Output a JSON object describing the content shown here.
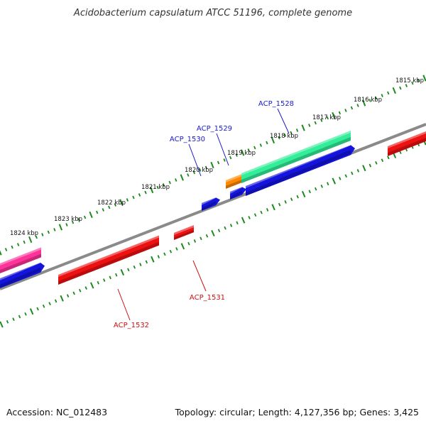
{
  "title": "Acidobacterium capsulatum ATCC 51196, complete genome",
  "footer": {
    "accession": "Accession: NC_012483",
    "summary": "Topology: circular; Length: 4,127,356 bp; Genes: 3,425"
  },
  "colors": {
    "backbone": "#8a8a8a",
    "ticks": "#1a8a1a",
    "label_forward": "#1a1acc",
    "label_reverse": "#cc1111"
  },
  "ticks": [
    {
      "label": "1815 kbp"
    },
    {
      "label": "1816 kbp"
    },
    {
      "label": "1817 kbp"
    },
    {
      "label": "1818 kbp"
    },
    {
      "label": "1819 kbp"
    },
    {
      "label": "1820 kbp"
    },
    {
      "label": "1821 kbp"
    },
    {
      "label": "1822 kbp"
    },
    {
      "label": "1823 kbp"
    },
    {
      "label": "1824 kbp"
    }
  ],
  "gene_labels": [
    {
      "name": "ACP_1528",
      "strand": "forward"
    },
    {
      "name": "ACP_1529",
      "strand": "forward"
    },
    {
      "name": "ACP_1530",
      "strand": "forward"
    },
    {
      "name": "ACP_1531",
      "strand": "reverse"
    },
    {
      "name": "ACP_1532",
      "strand": "reverse"
    }
  ],
  "features": [
    {
      "name": "pink-feature-left",
      "color": "#ff3399"
    },
    {
      "name": "blue-feature-left",
      "color": "#1414dd"
    },
    {
      "name": "blue-feature-small",
      "color": "#1414dd"
    },
    {
      "name": "orange-feature",
      "color": "#ff8800"
    },
    {
      "name": "green-feature",
      "color": "#33ee99"
    },
    {
      "name": "blue-feature-small-2",
      "color": "#1414dd"
    },
    {
      "name": "blue-feature-long",
      "color": "#1414dd"
    },
    {
      "name": "red-feature-right",
      "color": "#ee1111"
    },
    {
      "name": "red-feature-small",
      "color": "#ee1111"
    },
    {
      "name": "red-feature-long",
      "color": "#ee1111"
    }
  ]
}
